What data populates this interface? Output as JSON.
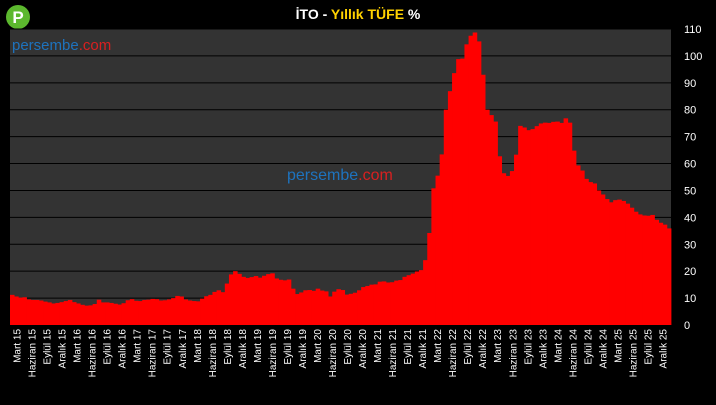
{
  "logo_letter": "P",
  "title": {
    "part1": "İTO - ",
    "part2": "Yıllık TÜFE",
    "part3": " %"
  },
  "watermark": {
    "part1": "persembe",
    "part2": ".com"
  },
  "colors": {
    "plot_bg": "#333333",
    "bar": "#ff0000",
    "grid": "#000000",
    "logo_green": "#5cb82e",
    "wm_blue": "#1e73be",
    "wm_red": "#d92020",
    "title_yellow": "#ffd200"
  },
  "chart_data": {
    "type": "bar",
    "title": "İTO - Yıllık TÜFE %",
    "ylim": [
      0,
      110
    ],
    "yticks": [
      0,
      10,
      20,
      30,
      40,
      50,
      60,
      70,
      80,
      90,
      100,
      110
    ],
    "y_axis_position": "right",
    "grid": true,
    "tick_labels": [
      "Mart 15",
      "Haziran 15",
      "Eylül 15",
      "Aralık 15",
      "Mart 16",
      "Haziran 16",
      "Eylül 16",
      "Aralık 16",
      "Mart 17",
      "Haziran 17",
      "Eylül 17",
      "Aralık 17",
      "Mart 18",
      "Haziran 18",
      "Eylül 18",
      "Aralık 18",
      "Mart 19",
      "Haziran 19",
      "Eylül 19",
      "Aralık 19",
      "Mart 20",
      "Haziran 20",
      "Eylül 20",
      "Aralık 20",
      "Mart 21",
      "Haziran 21",
      "Eylül 21",
      "Aralık 21",
      "Mart 22",
      "Haziran 22",
      "Eylül 22",
      "Aralık 22",
      "Mart 23",
      "Haziran 23",
      "Eylül 23",
      "Aralık 23",
      "Mart 24",
      "Haziran 24",
      "Eylül 24",
      "Aralık 24",
      "Mart 25",
      "Haziran 25",
      "Eylül 25",
      "Aralık 25"
    ],
    "values": [
      11.2,
      10.6,
      10.2,
      10.3,
      9.5,
      9.3,
      9.3,
      9.1,
      8.7,
      8.4,
      8.0,
      8.2,
      8.5,
      8.9,
      9.3,
      8.5,
      8.0,
      7.5,
      7.2,
      7.3,
      7.8,
      9.4,
      8.4,
      8.4,
      8.2,
      7.9,
      7.6,
      8.1,
      9.2,
      9.6,
      9.0,
      8.9,
      9.3,
      9.4,
      9.7,
      9.6,
      9.1,
      9.2,
      9.5,
      10.0,
      10.8,
      10.6,
      9.5,
      9.1,
      8.9,
      8.8,
      9.8,
      10.7,
      11.2,
      12.3,
      12.9,
      12.2,
      15.4,
      18.8,
      20.0,
      19.0,
      17.9,
      17.5,
      17.8,
      18.2,
      17.6,
      18.3,
      18.9,
      19.2,
      17.3,
      16.8,
      16.6,
      16.9,
      13.5,
      11.5,
      12.1,
      12.9,
      13.0,
      12.7,
      13.5,
      12.8,
      12.5,
      10.6,
      12.4,
      13.3,
      13.0,
      11.3,
      11.6,
      12.0,
      12.9,
      14.1,
      14.5,
      15.0,
      15.1,
      16.1,
      16.2,
      15.8,
      15.9,
      16.5,
      16.7,
      17.9,
      18.5,
      19.1,
      19.9,
      20.4,
      24.1,
      34.2,
      50.8,
      55.5,
      63.4,
      80.0,
      86.9,
      93.6,
      98.8,
      99.0,
      104.3,
      107.5,
      108.7,
      105.4,
      93.0,
      80.0,
      78.0,
      75.6,
      62.7,
      56.4,
      55.4,
      57.2,
      63.3,
      74.0,
      73.4,
      72.4,
      72.8,
      73.9,
      74.9,
      75.2,
      75.1,
      75.5,
      75.6,
      75.1,
      76.8,
      75.2,
      64.8,
      59.3,
      57.4,
      54.3,
      53.1,
      52.6,
      50.0,
      48.5,
      46.8,
      45.6,
      46.4,
      46.6,
      46.1,
      45.1,
      43.6,
      42.1,
      41.1,
      40.7,
      40.6,
      40.9,
      39.1,
      38.0,
      37.3,
      35.9
    ]
  }
}
